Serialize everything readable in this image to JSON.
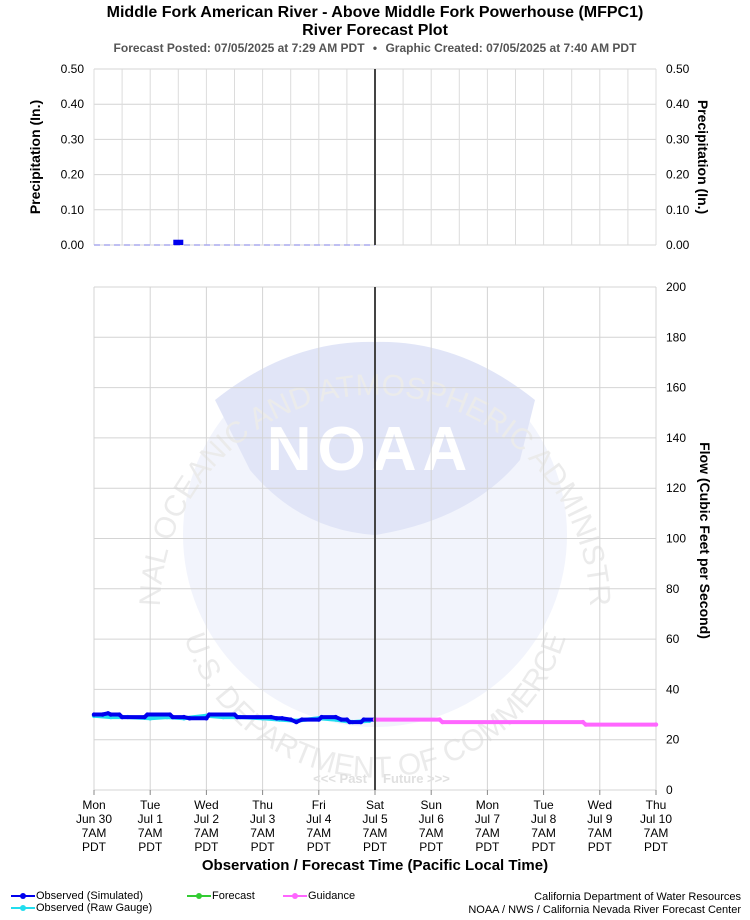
{
  "header": {
    "title_line1": "Middle Fork American River - Above Middle Fork Powerhouse (MFPC1)",
    "title_line2": "River Forecast Plot",
    "forecast_posted": "Forecast Posted: 07/05/2025 at 7:29 AM PDT",
    "separator": "•",
    "graphic_created": "Graphic Created: 07/05/2025 at 7:40 AM PDT"
  },
  "chart_data": [
    {
      "type": "bar",
      "name": "precipitation",
      "ylabel_left": "Precipitation (In.)",
      "ylabel_right": "Precipitation (In.)",
      "ylim": [
        0,
        0.5
      ],
      "yticks": [
        "0.00",
        "0.10",
        "0.20",
        "0.30",
        "0.40",
        "0.50"
      ],
      "grid": true,
      "bars": [
        {
          "x_day": 1.5,
          "value": 0.015,
          "color": "#0000ee"
        }
      ],
      "zero_line_color": "#aaaaee"
    },
    {
      "type": "line",
      "name": "flow",
      "ylabel_right": "Flow (Cubic Feet per Second)",
      "ylim": [
        0,
        200
      ],
      "yticks": [
        "0",
        "20",
        "40",
        "60",
        "80",
        "100",
        "120",
        "140",
        "160",
        "180",
        "200"
      ],
      "grid": true,
      "xlabel": "Observation / Forecast Time (Pacific Local Time)",
      "xticks": [
        [
          "Mon",
          "Jun 30",
          "7AM",
          "PDT"
        ],
        [
          "Tue",
          "Jul 1",
          "7AM",
          "PDT"
        ],
        [
          "Wed",
          "Jul 2",
          "7AM",
          "PDT"
        ],
        [
          "Thu",
          "Jul 3",
          "7AM",
          "PDT"
        ],
        [
          "Fri",
          "Jul 4",
          "7AM",
          "PDT"
        ],
        [
          "Sat",
          "Jul 5",
          "7AM",
          "PDT"
        ],
        [
          "Sun",
          "Jul 6",
          "7AM",
          "PDT"
        ],
        [
          "Mon",
          "Jul 7",
          "7AM",
          "PDT"
        ],
        [
          "Tue",
          "Jul 8",
          "7AM",
          "PDT"
        ],
        [
          "Wed",
          "Jul 9",
          "7AM",
          "PDT"
        ],
        [
          "Thu",
          "Jul 10",
          "7AM",
          "PDT"
        ]
      ],
      "now_line_x": 5,
      "past_label": "<<< Past",
      "future_label": "Future >>>",
      "series": [
        {
          "name": "Observed (Raw Gauge)",
          "color": "#22ddee",
          "x": [
            0,
            0.3,
            0.6,
            1.0,
            1.3,
            1.6,
            2.0,
            2.3,
            2.6,
            3.0,
            3.3,
            3.6,
            4.0,
            4.3,
            4.6,
            4.9
          ],
          "y": [
            29.5,
            29,
            29,
            28.5,
            29,
            28.5,
            29.5,
            29,
            29,
            28.5,
            28,
            27.5,
            28.5,
            28,
            27,
            27.5
          ]
        },
        {
          "name": "Observed (Simulated)",
          "color": "#0000ee",
          "x": [
            0,
            0.15,
            0.25,
            0.3,
            0.45,
            0.5,
            0.9,
            0.95,
            1.35,
            1.4,
            1.6,
            1.7,
            2.0,
            2.05,
            2.5,
            2.55,
            3.15,
            3.25,
            3.35,
            3.5,
            3.6,
            3.7,
            4.0,
            4.05,
            4.3,
            4.4,
            4.5,
            4.55,
            4.75,
            4.8,
            5.0
          ],
          "y": [
            30,
            30,
            30.5,
            30,
            30,
            29,
            29,
            30,
            30,
            29,
            29,
            28.5,
            28.5,
            30,
            30,
            29,
            29,
            28.5,
            28.5,
            28,
            27,
            28,
            28,
            29,
            29,
            28,
            28,
            27,
            27,
            28,
            28
          ]
        },
        {
          "name": "Forecast",
          "color": "#33cc33",
          "x": [],
          "y": []
        },
        {
          "name": "Guidance",
          "color": "#ff66ff",
          "x": [
            5.0,
            6.15,
            6.2,
            8.7,
            8.75,
            10.0
          ],
          "y": [
            28,
            28,
            27,
            27,
            26,
            26
          ]
        }
      ]
    }
  ],
  "legend": {
    "observed_simulated": "Observed (Simulated)",
    "observed_raw": "Observed (Raw Gauge)",
    "forecast": "Forecast",
    "guidance": "Guidance"
  },
  "credits": {
    "line1": "California Department of Water Resources",
    "line2": "NOAA / NWS / California Nevada River Forecast Center"
  },
  "watermark": {
    "arc_top": "NATIONAL OCEANIC AND ATMOSPHERIC ADMINISTRATION",
    "arc_bottom": "U.S. DEPARTMENT OF COMMERCE",
    "center": "NOAA"
  }
}
